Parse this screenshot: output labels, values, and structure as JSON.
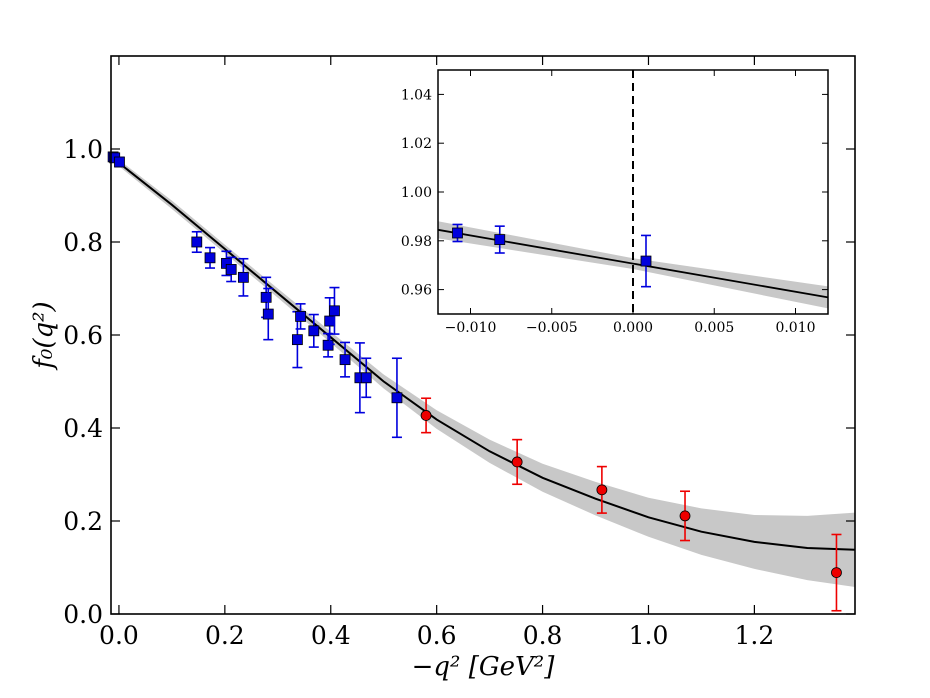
{
  "chart_data": {
    "type": "scatter",
    "main": {
      "xlabel": "−q² [GeV²]",
      "ylabel": "f₀(q²)",
      "xlim": [
        -0.015,
        1.39
      ],
      "ylim": [
        0.0,
        1.2
      ],
      "xticks": [
        0.0,
        0.2,
        0.4,
        0.6,
        0.8,
        1.0,
        1.2
      ],
      "xtick_labels": [
        "0.0",
        "0.2",
        "0.4",
        "0.6",
        "0.8",
        "1.0",
        "1.2"
      ],
      "yticks": [
        0.0,
        0.2,
        0.4,
        0.6,
        0.8,
        1.0
      ],
      "ytick_labels": [
        "0.0",
        "0.2",
        "0.4",
        "0.6",
        "0.8",
        "1.0"
      ],
      "series": [
        {
          "name": "blue squares",
          "marker": "square",
          "color": "#0000dd",
          "points": [
            {
              "x": -0.011,
              "y": 0.983,
              "err": 0.004
            },
            {
              "x": -0.008,
              "y": 0.981,
              "err": 0.005
            },
            {
              "x": 0.001,
              "y": 0.972,
              "err": 0.01
            },
            {
              "x": 0.147,
              "y": 0.8,
              "err": 0.022
            },
            {
              "x": 0.172,
              "y": 0.766,
              "err": 0.022
            },
            {
              "x": 0.203,
              "y": 0.754,
              "err": 0.026
            },
            {
              "x": 0.212,
              "y": 0.741,
              "err": 0.026
            },
            {
              "x": 0.235,
              "y": 0.724,
              "err": 0.04
            },
            {
              "x": 0.278,
              "y": 0.681,
              "err": 0.043
            },
            {
              "x": 0.282,
              "y": 0.645,
              "err": 0.055
            },
            {
              "x": 0.337,
              "y": 0.59,
              "err": 0.06
            },
            {
              "x": 0.343,
              "y": 0.64,
              "err": 0.027
            },
            {
              "x": 0.368,
              "y": 0.609,
              "err": 0.035
            },
            {
              "x": 0.395,
              "y": 0.578,
              "err": 0.025
            },
            {
              "x": 0.398,
              "y": 0.63,
              "err": 0.05
            },
            {
              "x": 0.407,
              "y": 0.652,
              "err": 0.05
            },
            {
              "x": 0.427,
              "y": 0.547,
              "err": 0.037
            },
            {
              "x": 0.455,
              "y": 0.508,
              "err": 0.075
            },
            {
              "x": 0.467,
              "y": 0.508,
              "err": 0.042
            },
            {
              "x": 0.525,
              "y": 0.465,
              "err": 0.085
            }
          ]
        },
        {
          "name": "red circles",
          "marker": "circle",
          "color": "#ee0000",
          "points": [
            {
              "x": 0.58,
              "y": 0.427,
              "err": 0.037
            },
            {
              "x": 0.752,
              "y": 0.327,
              "err": 0.048
            },
            {
              "x": 0.912,
              "y": 0.267,
              "err": 0.05
            },
            {
              "x": 1.069,
              "y": 0.211,
              "err": 0.053
            },
            {
              "x": 1.355,
              "y": 0.089,
              "err": 0.082
            }
          ]
        }
      ],
      "fit_curve": {
        "color": "#000000",
        "points": [
          [
            -0.015,
            0.984
          ],
          [
            0.0,
            0.97
          ],
          [
            0.1,
            0.88
          ],
          [
            0.2,
            0.785
          ],
          [
            0.3,
            0.69
          ],
          [
            0.4,
            0.595
          ],
          [
            0.5,
            0.5
          ],
          [
            0.6,
            0.418
          ],
          [
            0.7,
            0.35
          ],
          [
            0.8,
            0.293
          ],
          [
            0.9,
            0.248
          ],
          [
            1.0,
            0.208
          ],
          [
            1.1,
            0.177
          ],
          [
            1.2,
            0.155
          ],
          [
            1.3,
            0.142
          ],
          [
            1.39,
            0.138
          ]
        ],
        "band": [
          [
            -0.015,
            0.976,
            0.992
          ],
          [
            0.0,
            0.963,
            0.977
          ],
          [
            0.1,
            0.871,
            0.889
          ],
          [
            0.2,
            0.776,
            0.794
          ],
          [
            0.3,
            0.68,
            0.7
          ],
          [
            0.4,
            0.583,
            0.607
          ],
          [
            0.5,
            0.485,
            0.515
          ],
          [
            0.6,
            0.398,
            0.438
          ],
          [
            0.7,
            0.325,
            0.375
          ],
          [
            0.8,
            0.263,
            0.323
          ],
          [
            0.9,
            0.212,
            0.284
          ],
          [
            1.0,
            0.166,
            0.25
          ],
          [
            1.1,
            0.127,
            0.227
          ],
          [
            1.2,
            0.097,
            0.213
          ],
          [
            1.3,
            0.073,
            0.211
          ],
          [
            1.39,
            0.058,
            0.218
          ]
        ]
      }
    },
    "inset": {
      "xlim": [
        -0.012,
        0.012
      ],
      "ylim": [
        0.95,
        1.05
      ],
      "xticks": [
        -0.01,
        -0.005,
        0.0,
        0.005,
        0.01
      ],
      "xtick_labels": [
        "−0.010",
        "−0.005",
        "0.000",
        "0.005",
        "0.010"
      ],
      "yticks": [
        0.96,
        0.98,
        1.0,
        1.02,
        1.04
      ],
      "ytick_labels": [
        "0.96",
        "0.98",
        "1.00",
        "1.02",
        "1.04"
      ],
      "vline_x": 0.0,
      "points": [
        {
          "x": -0.0108,
          "y": 0.9832,
          "err": 0.0035
        },
        {
          "x": -0.0082,
          "y": 0.9805,
          "err": 0.0055
        },
        {
          "x": 0.0008,
          "y": 0.9717,
          "err": 0.0105
        }
      ],
      "fit_line": {
        "x": [
          -0.012,
          0.012
        ],
        "y": [
          0.9845,
          0.9568
        ]
      },
      "band_halfwidth": [
        0.0035,
        0.0022,
        0.0045
      ],
      "band_x": [
        -0.012,
        0.0,
        0.012
      ]
    }
  }
}
